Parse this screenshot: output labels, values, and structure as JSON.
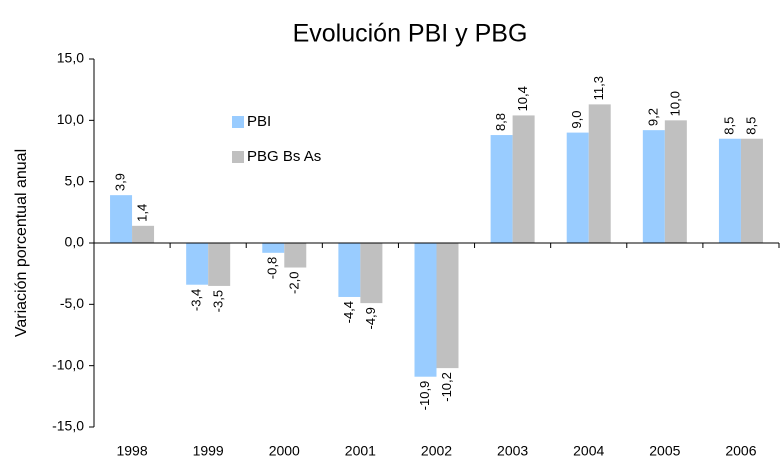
{
  "chart_data": {
    "type": "bar",
    "title": "Evolución PBI y PBG",
    "ylabel": "Variación porcentual anual",
    "categories": [
      "1998",
      "1999",
      "2000",
      "2001",
      "2002",
      "2003",
      "2004",
      "2005",
      "2006"
    ],
    "series": [
      {
        "name": "PBI",
        "color": "#99ccff",
        "values": [
          3.9,
          -3.4,
          -0.8,
          -4.4,
          -10.9,
          8.8,
          9.0,
          9.2,
          8.5
        ],
        "value_labels": [
          "3,9",
          "-3,4",
          "-0,8",
          "-4,4",
          "-10,9",
          "8,8",
          "9,0",
          "9,2",
          "8,5"
        ]
      },
      {
        "name": "PBG Bs As",
        "color": "#c0c0c0",
        "values": [
          1.4,
          -3.5,
          -2.0,
          -4.9,
          -10.2,
          10.4,
          11.3,
          10.0,
          8.5
        ],
        "value_labels": [
          "1,4",
          "-3,5",
          "-2,0",
          "-4,9",
          "-10,2",
          "10,4",
          "11,3",
          "10,0",
          "8,5"
        ]
      }
    ],
    "ylim": [
      -15,
      15
    ],
    "yticks": [
      {
        "value": -15,
        "label": "-15,0"
      },
      {
        "value": -10,
        "label": "-10,0"
      },
      {
        "value": -5,
        "label": "-5,0"
      },
      {
        "value": 0,
        "label": "0,0"
      },
      {
        "value": 5,
        "label": "5,0"
      },
      {
        "value": 10,
        "label": "10,0"
      },
      {
        "value": 15,
        "label": "15,0"
      }
    ],
    "legend": "upper left",
    "grid": false
  }
}
